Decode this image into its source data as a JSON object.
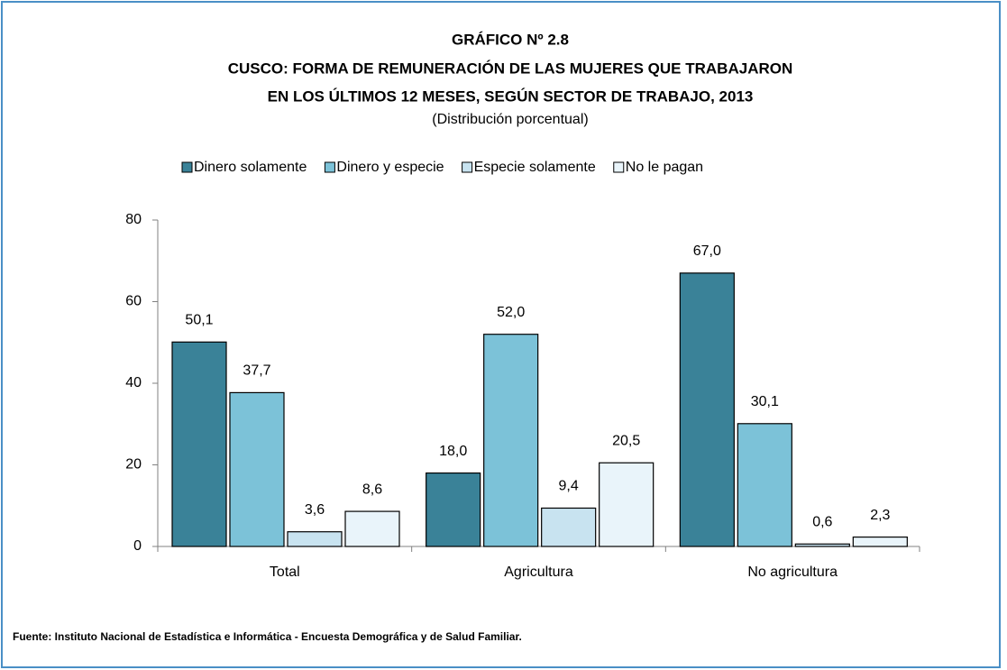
{
  "chart_data": {
    "type": "bar",
    "title": [
      "GRÁFICO Nº 2.8",
      "CUSCO: FORMA DE REMUNERACIÓN DE LAS MUJERES QUE TRABAJARON",
      "EN LOS ÚLTIMOS 12 MESES, SEGÚN SECTOR DE TRABAJO, 2013"
    ],
    "subtitle": "(Distribución porcentual)",
    "categories": [
      "Total",
      "Agricultura",
      "No agricultura"
    ],
    "series": [
      {
        "name": "Dinero solamente",
        "color": "#3a8298",
        "values": [
          50.1,
          18.0,
          67.0
        ],
        "value_labels": [
          "50,1",
          "18,0",
          "67,0"
        ]
      },
      {
        "name": "Dinero y especie",
        "color": "#7cc2d8",
        "values": [
          37.7,
          52.0,
          30.1
        ],
        "value_labels": [
          "37,7",
          "52,0",
          "30,1"
        ]
      },
      {
        "name": "Especie solamente",
        "color": "#c8e3f0",
        "values": [
          3.6,
          9.4,
          0.6
        ],
        "value_labels": [
          "3,6",
          "9,4",
          "0,6"
        ]
      },
      {
        "name": "No le pagan",
        "color": "#e9f4fa",
        "values": [
          8.6,
          20.5,
          2.3
        ],
        "value_labels": [
          "8,6",
          "20,5",
          "2,3"
        ]
      }
    ],
    "ylim": [
      0,
      80
    ],
    "yticks": [
      0,
      20,
      40,
      60,
      80
    ],
    "grid": false,
    "legend": "top",
    "source": "Fuente: Instituto Nacional de Estadística e Informática - Encuesta Demográfica y de Salud Familiar."
  }
}
